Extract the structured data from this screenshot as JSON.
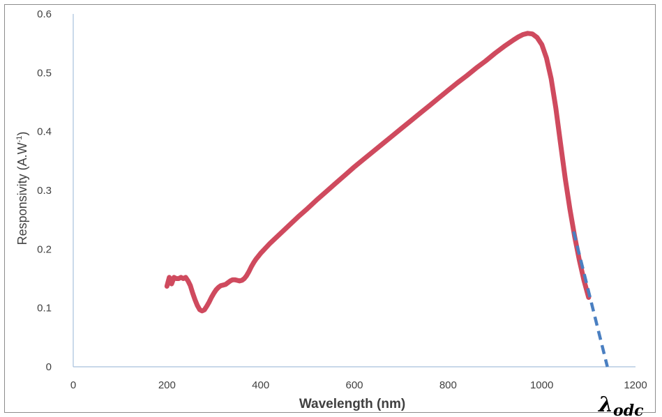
{
  "chart_data": {
    "type": "line",
    "xlabel": "Wavelength (nm)",
    "ylabel": "Responsivity (A.W",
    "ylabel_superscript": "-1",
    "ylabel_close": ")",
    "xlim": [
      0,
      1200
    ],
    "ylim": [
      0,
      0.6
    ],
    "x_ticks": [
      0,
      200,
      400,
      600,
      800,
      1000,
      1200
    ],
    "y_ticks": [
      0,
      0.1,
      0.2,
      0.3,
      0.4,
      0.5,
      0.6
    ],
    "y_tick_labels": [
      "0",
      "0.1",
      "0.2",
      "0.3",
      "0.4",
      "0.5",
      "0.6"
    ],
    "grid": false,
    "series": [
      {
        "color": "#cf4a5e",
        "style": "solid",
        "x": [
          200,
          205,
          210,
          215,
          220,
          225,
          230,
          235,
          240,
          245,
          250,
          255,
          260,
          265,
          270,
          275,
          280,
          285,
          290,
          295,
          300,
          305,
          310,
          315,
          320,
          325,
          330,
          335,
          340,
          345,
          350,
          355,
          360,
          365,
          370,
          375,
          380,
          385,
          390,
          395,
          400,
          420,
          440,
          460,
          480,
          500,
          520,
          540,
          560,
          580,
          600,
          620,
          640,
          660,
          680,
          700,
          720,
          740,
          760,
          780,
          800,
          820,
          840,
          860,
          880,
          900,
          920,
          940,
          950,
          960,
          970,
          980,
          990,
          1000,
          1010,
          1020,
          1030,
          1040,
          1050,
          1060,
          1070,
          1080,
          1090,
          1100
        ],
        "y": [
          0.137,
          0.152,
          0.141,
          0.152,
          0.15,
          0.15,
          0.152,
          0.15,
          0.152,
          0.146,
          0.138,
          0.125,
          0.114,
          0.104,
          0.097,
          0.095,
          0.097,
          0.103,
          0.11,
          0.118,
          0.125,
          0.131,
          0.135,
          0.138,
          0.139,
          0.14,
          0.143,
          0.146,
          0.148,
          0.148,
          0.147,
          0.146,
          0.147,
          0.15,
          0.155,
          0.162,
          0.17,
          0.177,
          0.183,
          0.188,
          0.193,
          0.21,
          0.225,
          0.24,
          0.255,
          0.269,
          0.284,
          0.298,
          0.312,
          0.326,
          0.34,
          0.353,
          0.366,
          0.379,
          0.392,
          0.405,
          0.418,
          0.431,
          0.444,
          0.457,
          0.47,
          0.483,
          0.495,
          0.508,
          0.52,
          0.533,
          0.545,
          0.556,
          0.561,
          0.565,
          0.567,
          0.566,
          0.56,
          0.548,
          0.525,
          0.49,
          0.44,
          0.38,
          0.32,
          0.268,
          0.222,
          0.182,
          0.147,
          0.118
        ]
      },
      {
        "color": "#4a7fc1",
        "style": "dashed",
        "x": [
          1068,
          1140
        ],
        "y": [
          0.23,
          0.0
        ]
      }
    ],
    "annotations": [
      {
        "text": "λ",
        "subscript": "odc",
        "near_x": 1140
      }
    ]
  }
}
